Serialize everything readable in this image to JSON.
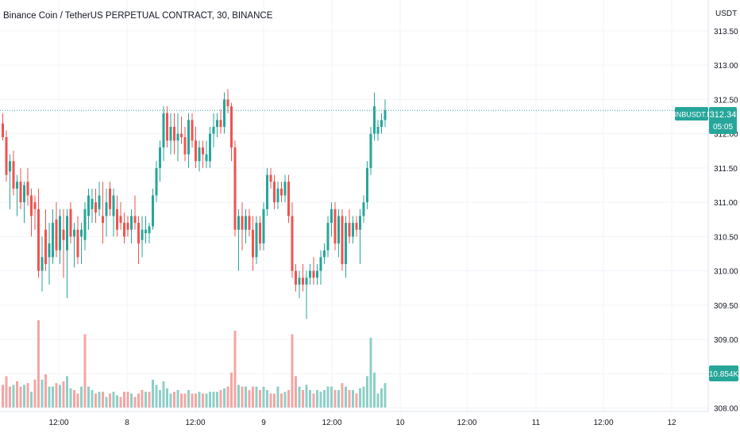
{
  "header": {
    "title": "Binance Coin / TetherUS PERPETUAL CONTRACT, 30, BINANCE"
  },
  "price_axis": {
    "unit": "USDT",
    "tick_labels": [
      "313.50",
      "313.00",
      "312.50",
      "312.00",
      "311.50",
      "311.00",
      "310.50",
      "310.00",
      "309.50",
      "309.00",
      "308.50",
      "308.00"
    ]
  },
  "time_axis": {
    "tick_labels": [
      "12:00",
      "8",
      "12:00",
      "9",
      "12:00",
      "10",
      "12:00",
      "11",
      "12:00",
      "12"
    ]
  },
  "last_price_tag": {
    "symbol": "BNBUSDT.P",
    "price": "312.34",
    "countdown": "05:05"
  },
  "volume_tag": {
    "value": "10.854K"
  },
  "colors": {
    "up": "#26a69a",
    "down": "#ef5350",
    "up_volume": "#8dcfc7",
    "down_volume": "#f5a5a3",
    "grid": "#f0f3fa",
    "axis_text": "#131722"
  },
  "chart_data": {
    "type": "candlestick",
    "interval": "30",
    "ylim": [
      307.95,
      313.95
    ],
    "grid": true,
    "candles": [
      [
        312.15,
        312.3,
        311.9,
        311.95,
        "down"
      ],
      [
        311.95,
        312.05,
        311.3,
        311.4,
        "down"
      ],
      [
        311.45,
        311.7,
        310.9,
        311.6,
        "up"
      ],
      [
        311.6,
        311.75,
        311.1,
        311.2,
        "down"
      ],
      [
        311.2,
        311.4,
        310.8,
        311.3,
        "up"
      ],
      [
        311.3,
        311.5,
        310.9,
        311.0,
        "down"
      ],
      [
        311.0,
        311.3,
        310.7,
        311.25,
        "up"
      ],
      [
        311.3,
        311.5,
        310.95,
        311.1,
        "down"
      ],
      [
        311.1,
        311.2,
        310.5,
        310.8,
        "down"
      ],
      [
        311.0,
        311.1,
        310.6,
        310.9,
        "down"
      ],
      [
        310.9,
        311.2,
        309.9,
        310.0,
        "down"
      ],
      [
        310.2,
        310.5,
        309.7,
        310.0,
        "up"
      ],
      [
        310.6,
        310.9,
        310.0,
        310.1,
        "down"
      ],
      [
        310.4,
        310.7,
        309.8,
        310.2,
        "up"
      ],
      [
        310.2,
        310.9,
        310.1,
        310.7,
        "up"
      ],
      [
        310.75,
        311.0,
        310.2,
        310.3,
        "down"
      ],
      [
        310.3,
        310.9,
        310.1,
        310.8,
        "up"
      ],
      [
        310.6,
        310.9,
        309.9,
        310.45,
        "down"
      ],
      [
        310.3,
        310.9,
        309.6,
        310.8,
        "up"
      ],
      [
        310.9,
        311.0,
        310.4,
        310.5,
        "down"
      ],
      [
        310.5,
        310.7,
        310.05,
        310.6,
        "up"
      ],
      [
        310.6,
        310.8,
        310.1,
        310.2,
        "down"
      ],
      [
        310.5,
        310.7,
        310.1,
        310.6,
        "up"
      ],
      [
        310.45,
        311.0,
        310.3,
        310.9,
        "up"
      ],
      [
        310.8,
        311.2,
        310.6,
        311.1,
        "up"
      ],
      [
        310.9,
        311.2,
        310.7,
        311.05,
        "up"
      ],
      [
        311.0,
        311.2,
        310.7,
        310.85,
        "down"
      ],
      [
        310.9,
        311.3,
        310.8,
        311.1,
        "up"
      ],
      [
        310.8,
        311.3,
        310.4,
        310.7,
        "down"
      ],
      [
        310.8,
        311.2,
        310.5,
        311.0,
        "up"
      ],
      [
        311.2,
        311.3,
        310.8,
        310.9,
        "down"
      ],
      [
        310.8,
        311.2,
        310.5,
        311.1,
        "up"
      ],
      [
        310.9,
        311.1,
        310.5,
        310.6,
        "down"
      ],
      [
        310.8,
        311.0,
        310.6,
        310.7,
        "down"
      ],
      [
        310.7,
        310.85,
        310.4,
        310.5,
        "down"
      ],
      [
        310.7,
        310.8,
        310.5,
        310.6,
        "down"
      ],
      [
        310.6,
        310.9,
        310.4,
        310.8,
        "up"
      ],
      [
        310.8,
        311.1,
        310.6,
        310.7,
        "down"
      ],
      [
        310.7,
        310.8,
        310.1,
        310.4,
        "down"
      ],
      [
        310.45,
        310.8,
        310.2,
        310.6,
        "up"
      ],
      [
        310.55,
        310.8,
        310.4,
        310.6,
        "up"
      ],
      [
        310.55,
        310.7,
        310.4,
        310.65,
        "up"
      ],
      [
        310.65,
        311.2,
        310.6,
        311.1,
        "up"
      ],
      [
        311.1,
        311.6,
        311.0,
        311.5,
        "up"
      ],
      [
        311.5,
        311.9,
        311.3,
        311.8,
        "up"
      ],
      [
        311.8,
        312.4,
        311.6,
        312.3,
        "up"
      ],
      [
        312.3,
        312.4,
        311.8,
        311.9,
        "down"
      ],
      [
        311.9,
        312.3,
        311.7,
        312.1,
        "up"
      ],
      [
        312.1,
        312.3,
        311.7,
        311.9,
        "down"
      ],
      [
        311.9,
        312.3,
        311.6,
        312.0,
        "up"
      ],
      [
        312.0,
        312.25,
        311.85,
        311.95,
        "down"
      ],
      [
        311.95,
        312.1,
        311.6,
        311.7,
        "down"
      ],
      [
        311.7,
        312.3,
        311.5,
        312.2,
        "up"
      ],
      [
        312.2,
        312.3,
        311.8,
        311.9,
        "down"
      ],
      [
        311.9,
        312.1,
        311.5,
        311.6,
        "down"
      ],
      [
        311.6,
        311.9,
        311.45,
        311.8,
        "up"
      ],
      [
        311.8,
        311.9,
        311.5,
        311.7,
        "down"
      ],
      [
        311.7,
        311.9,
        311.5,
        311.6,
        "up"
      ],
      [
        311.6,
        312.1,
        311.5,
        312.0,
        "up"
      ],
      [
        312.0,
        312.3,
        311.8,
        312.1,
        "up"
      ],
      [
        312.1,
        312.3,
        311.95,
        312.2,
        "up"
      ],
      [
        312.2,
        312.35,
        312.0,
        312.1,
        "down"
      ],
      [
        312.1,
        312.6,
        312.0,
        312.5,
        "up"
      ],
      [
        312.5,
        312.65,
        312.3,
        312.4,
        "down"
      ],
      [
        312.4,
        312.45,
        311.6,
        311.8,
        "down"
      ],
      [
        311.8,
        311.9,
        310.5,
        310.6,
        "down"
      ],
      [
        310.6,
        310.9,
        310.0,
        310.8,
        "up"
      ],
      [
        310.8,
        311.0,
        310.3,
        310.6,
        "down"
      ],
      [
        310.6,
        310.9,
        310.4,
        310.8,
        "up"
      ],
      [
        310.8,
        310.9,
        310.5,
        310.6,
        "down"
      ],
      [
        310.6,
        310.8,
        310.0,
        310.2,
        "down"
      ],
      [
        310.2,
        310.8,
        310.1,
        310.7,
        "up"
      ],
      [
        310.7,
        310.8,
        310.3,
        310.4,
        "down"
      ],
      [
        310.4,
        311.0,
        310.3,
        310.9,
        "up"
      ],
      [
        310.9,
        311.5,
        310.8,
        311.4,
        "up"
      ],
      [
        311.4,
        311.5,
        311.2,
        311.3,
        "down"
      ],
      [
        311.3,
        311.4,
        310.9,
        311.0,
        "down"
      ],
      [
        311.0,
        311.3,
        310.9,
        311.2,
        "up"
      ],
      [
        311.2,
        311.3,
        311.0,
        311.1,
        "down"
      ],
      [
        311.1,
        311.4,
        311.0,
        311.3,
        "up"
      ],
      [
        311.3,
        311.4,
        310.7,
        310.8,
        "down"
      ],
      [
        310.8,
        311.0,
        309.9,
        310.0,
        "down"
      ],
      [
        310.0,
        310.1,
        309.7,
        309.8,
        "down"
      ],
      [
        309.8,
        310.0,
        309.6,
        309.9,
        "up"
      ],
      [
        309.9,
        310.1,
        309.7,
        309.8,
        "down"
      ],
      [
        309.8,
        310.0,
        309.3,
        309.9,
        "up"
      ],
      [
        309.9,
        310.1,
        309.8,
        310.0,
        "up"
      ],
      [
        310.0,
        310.2,
        309.8,
        309.9,
        "down"
      ],
      [
        309.9,
        310.1,
        309.8,
        310.0,
        "up"
      ],
      [
        310.0,
        310.3,
        309.8,
        310.2,
        "up"
      ],
      [
        310.2,
        310.4,
        310.1,
        310.3,
        "up"
      ],
      [
        310.3,
        310.8,
        310.2,
        310.7,
        "up"
      ],
      [
        310.7,
        311.0,
        310.5,
        310.9,
        "up"
      ],
      [
        310.9,
        311.0,
        310.3,
        310.4,
        "down"
      ],
      [
        310.4,
        310.9,
        310.2,
        310.8,
        "up"
      ],
      [
        310.8,
        310.9,
        310.0,
        310.1,
        "down"
      ],
      [
        310.1,
        310.8,
        309.9,
        310.7,
        "up"
      ],
      [
        310.7,
        310.9,
        310.4,
        310.5,
        "down"
      ],
      [
        310.5,
        310.8,
        310.4,
        310.7,
        "up"
      ],
      [
        310.7,
        310.8,
        310.5,
        310.6,
        "down"
      ],
      [
        310.6,
        310.9,
        310.1,
        310.8,
        "up"
      ],
      [
        310.8,
        311.1,
        310.7,
        311.0,
        "up"
      ],
      [
        311.0,
        311.6,
        310.9,
        311.5,
        "up"
      ],
      [
        311.5,
        312.1,
        311.4,
        312.0,
        "up"
      ],
      [
        312.0,
        312.6,
        311.9,
        312.4,
        "up"
      ],
      [
        312.0,
        312.2,
        311.9,
        312.1,
        "up"
      ],
      [
        312.1,
        312.3,
        312.0,
        312.2,
        "up"
      ],
      [
        312.2,
        312.5,
        312.1,
        312.34,
        "up"
      ]
    ],
    "volume": [
      [
        6.5,
        "down"
      ],
      [
        9,
        "down"
      ],
      [
        6,
        "down"
      ],
      [
        6.5,
        "up"
      ],
      [
        7.5,
        "down"
      ],
      [
        6,
        "down"
      ],
      [
        6.5,
        "up"
      ],
      [
        7,
        "down"
      ],
      [
        4.5,
        "up"
      ],
      [
        8,
        "down"
      ],
      [
        25,
        "down"
      ],
      [
        8,
        "up"
      ],
      [
        9.5,
        "down"
      ],
      [
        6,
        "up"
      ],
      [
        6,
        "up"
      ],
      [
        7,
        "down"
      ],
      [
        6.5,
        "up"
      ],
      [
        7.5,
        "down"
      ],
      [
        9,
        "up"
      ],
      [
        5.5,
        "up"
      ],
      [
        5,
        "down"
      ],
      [
        4,
        "down"
      ],
      [
        6,
        "up"
      ],
      [
        21,
        "down"
      ],
      [
        6,
        "up"
      ],
      [
        5,
        "up"
      ],
      [
        4,
        "down"
      ],
      [
        4.5,
        "up"
      ],
      [
        4.5,
        "down"
      ],
      [
        3,
        "up"
      ],
      [
        4,
        "down"
      ],
      [
        4.5,
        "up"
      ],
      [
        3.5,
        "up"
      ],
      [
        3,
        "down"
      ],
      [
        4.5,
        "down"
      ],
      [
        4.5,
        "down"
      ],
      [
        4,
        "up"
      ],
      [
        3,
        "down"
      ],
      [
        4,
        "down"
      ],
      [
        5,
        "down"
      ],
      [
        4.5,
        "up"
      ],
      [
        4.5,
        "down"
      ],
      [
        8,
        "up"
      ],
      [
        6.5,
        "up"
      ],
      [
        5,
        "up"
      ],
      [
        7.5,
        "up"
      ],
      [
        5.5,
        "up"
      ],
      [
        4,
        "up"
      ],
      [
        4.5,
        "down"
      ],
      [
        5,
        "up"
      ],
      [
        4,
        "down"
      ],
      [
        4,
        "down"
      ],
      [
        5,
        "up"
      ],
      [
        4,
        "down"
      ],
      [
        4,
        "down"
      ],
      [
        4.5,
        "up"
      ],
      [
        4,
        "down"
      ],
      [
        4,
        "up"
      ],
      [
        4.5,
        "up"
      ],
      [
        4.5,
        "up"
      ],
      [
        4.5,
        "up"
      ],
      [
        5,
        "down"
      ],
      [
        5.5,
        "up"
      ],
      [
        6,
        "down"
      ],
      [
        10,
        "down"
      ],
      [
        22,
        "down"
      ],
      [
        6.5,
        "up"
      ],
      [
        6,
        "down"
      ],
      [
        6,
        "up"
      ],
      [
        5,
        "down"
      ],
      [
        6,
        "down"
      ],
      [
        6,
        "up"
      ],
      [
        5,
        "down"
      ],
      [
        6,
        "up"
      ],
      [
        5,
        "up"
      ],
      [
        4,
        "down"
      ],
      [
        4,
        "down"
      ],
      [
        6,
        "up"
      ],
      [
        4,
        "down"
      ],
      [
        4.5,
        "up"
      ],
      [
        5,
        "down"
      ],
      [
        21,
        "down"
      ],
      [
        9,
        "down"
      ],
      [
        6,
        "up"
      ],
      [
        5,
        "down"
      ],
      [
        6.5,
        "up"
      ],
      [
        5,
        "up"
      ],
      [
        4,
        "down"
      ],
      [
        5,
        "up"
      ],
      [
        4.5,
        "up"
      ],
      [
        5,
        "up"
      ],
      [
        6,
        "up"
      ],
      [
        6,
        "up"
      ],
      [
        5,
        "down"
      ],
      [
        5,
        "up"
      ],
      [
        7,
        "down"
      ],
      [
        6,
        "up"
      ],
      [
        5,
        "down"
      ],
      [
        5,
        "up"
      ],
      [
        4,
        "down"
      ],
      [
        5.5,
        "up"
      ],
      [
        6,
        "up"
      ],
      [
        9,
        "up"
      ],
      [
        20,
        "up"
      ],
      [
        10,
        "up"
      ],
      [
        4,
        "up"
      ],
      [
        5.5,
        "up"
      ],
      [
        7,
        "up"
      ]
    ]
  }
}
